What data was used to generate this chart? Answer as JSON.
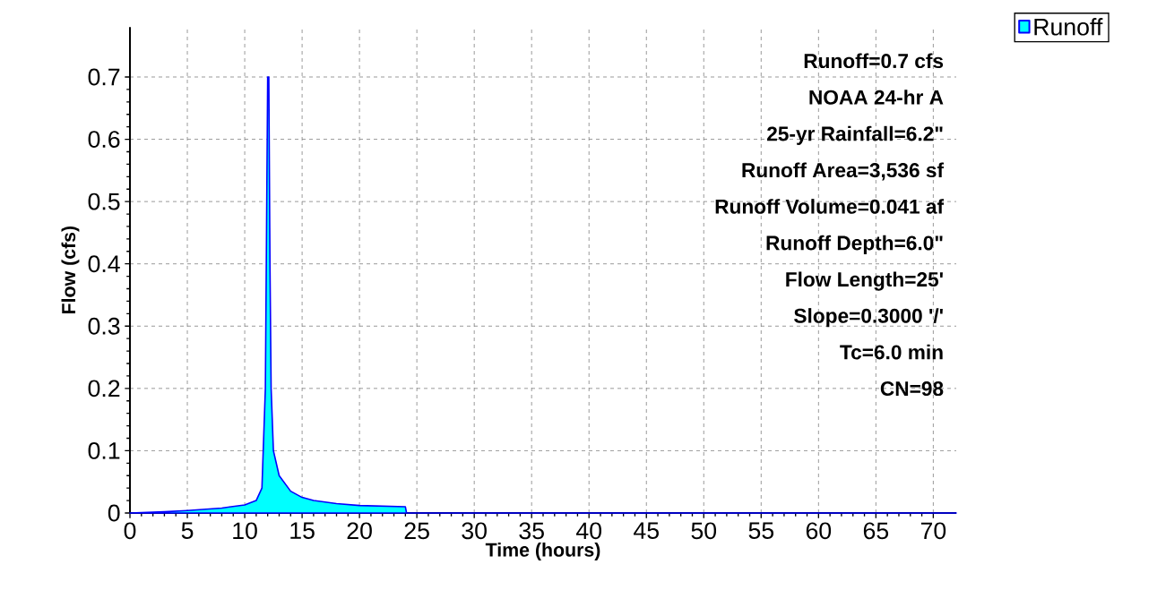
{
  "chart_data": {
    "type": "area",
    "xlabel": "Time  (hours)",
    "ylabel": "Flow  (cfs)",
    "x": [
      0,
      3,
      5,
      8,
      10,
      11,
      11.5,
      11.8,
      11.9,
      12.0,
      12.1,
      12.2,
      12.3,
      12.5,
      13,
      14,
      15,
      16,
      18,
      20,
      24,
      24.1,
      72
    ],
    "series": [
      {
        "name": "Runoff",
        "color": "#00ffff",
        "values": [
          0,
          0.002,
          0.004,
          0.008,
          0.013,
          0.02,
          0.04,
          0.2,
          0.45,
          0.7,
          0.7,
          0.4,
          0.2,
          0.1,
          0.06,
          0.035,
          0.025,
          0.02,
          0.015,
          0.012,
          0.01,
          0,
          0
        ]
      }
    ],
    "xlim": [
      0,
      72
    ],
    "ylim": [
      0,
      0.78
    ],
    "xticks": [
      0,
      5,
      10,
      15,
      20,
      25,
      30,
      35,
      40,
      45,
      50,
      55,
      60,
      65,
      70
    ],
    "yticks": [
      0,
      0.1,
      0.2,
      0.3,
      0.4,
      0.5,
      0.6,
      0.7
    ],
    "grid": true,
    "legend": "top right",
    "marker": "none",
    "annotations": [
      "Runoff=0.7 cfs",
      "NOAA 24-hr A",
      "25-yr Rainfall=6.2\"",
      "Runoff Area=3,536 sf",
      "Runoff Volume=0.041 af",
      "Runoff Depth=6.0\"",
      "Flow Length=25'",
      "Slope=0.3000 '/'",
      "Tc=6.0 min",
      "CN=98"
    ]
  }
}
